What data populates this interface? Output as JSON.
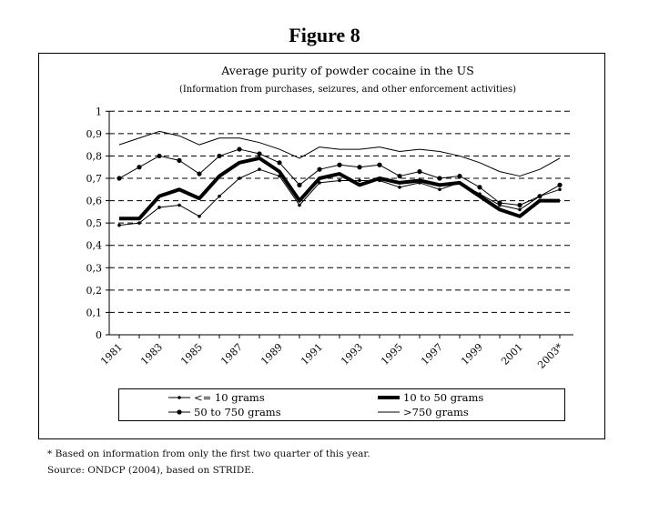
{
  "figure_title": "Figure 8",
  "chart_data": {
    "type": "line",
    "title": "Average purity of powder cocaine in the US",
    "subtitle": "(Information from purchases, seizures, and other enforcement activities)",
    "x": [
      1981,
      1982,
      1983,
      1984,
      1985,
      1986,
      1987,
      1988,
      1989,
      1990,
      1991,
      1992,
      1993,
      1994,
      1995,
      1996,
      1997,
      1998,
      1999,
      2000,
      2001,
      2002,
      2003
    ],
    "x_tick_labels": [
      "1981",
      "1983",
      "1985",
      "1987",
      "1989",
      "1991",
      "1993",
      "1995",
      "1997",
      "1999",
      "2001",
      "2003*"
    ],
    "y_ticks": [
      "0",
      "0,1",
      "0,2",
      "0,3",
      "0,4",
      "0,5",
      "0,6",
      "0,7",
      "0,8",
      "0,9",
      "1"
    ],
    "ylim": [
      0,
      1
    ],
    "grid": "horizontal dashed",
    "legend_placement": "bottom",
    "series": [
      {
        "name": "<= 10 grams",
        "style": "thin-marker",
        "values": [
          0.49,
          0.5,
          0.57,
          0.58,
          0.53,
          0.62,
          0.7,
          0.74,
          0.71,
          0.58,
          0.68,
          0.69,
          0.69,
          0.69,
          0.66,
          0.68,
          0.65,
          0.68,
          0.63,
          0.58,
          0.56,
          0.62,
          0.65
        ]
      },
      {
        "name": "10 to 50 grams",
        "style": "thick",
        "values": [
          0.52,
          0.52,
          0.62,
          0.65,
          0.61,
          0.71,
          0.77,
          0.79,
          0.73,
          0.6,
          0.7,
          0.72,
          0.67,
          0.7,
          0.68,
          0.69,
          0.67,
          0.68,
          0.62,
          0.56,
          0.53,
          0.6,
          0.6
        ]
      },
      {
        "name": "50 to 750 grams",
        "style": "marker",
        "values": [
          0.7,
          0.75,
          0.8,
          0.78,
          0.72,
          0.8,
          0.83,
          0.81,
          0.77,
          0.67,
          0.74,
          0.76,
          0.75,
          0.76,
          0.71,
          0.73,
          0.7,
          0.71,
          0.66,
          0.59,
          0.58,
          0.62,
          0.67
        ]
      },
      {
        "name": ">750 grams",
        "style": "thin",
        "values": [
          0.85,
          0.88,
          0.91,
          0.89,
          0.85,
          0.88,
          0.88,
          0.86,
          0.83,
          0.79,
          0.84,
          0.83,
          0.83,
          0.84,
          0.82,
          0.83,
          0.82,
          0.8,
          0.77,
          0.73,
          0.71,
          0.74,
          0.79
        ]
      }
    ]
  },
  "footnotes": {
    "note": "* Based on information from only the first two quarter of this year.",
    "source": "Source: ONDCP (2004), based on STRIDE."
  }
}
